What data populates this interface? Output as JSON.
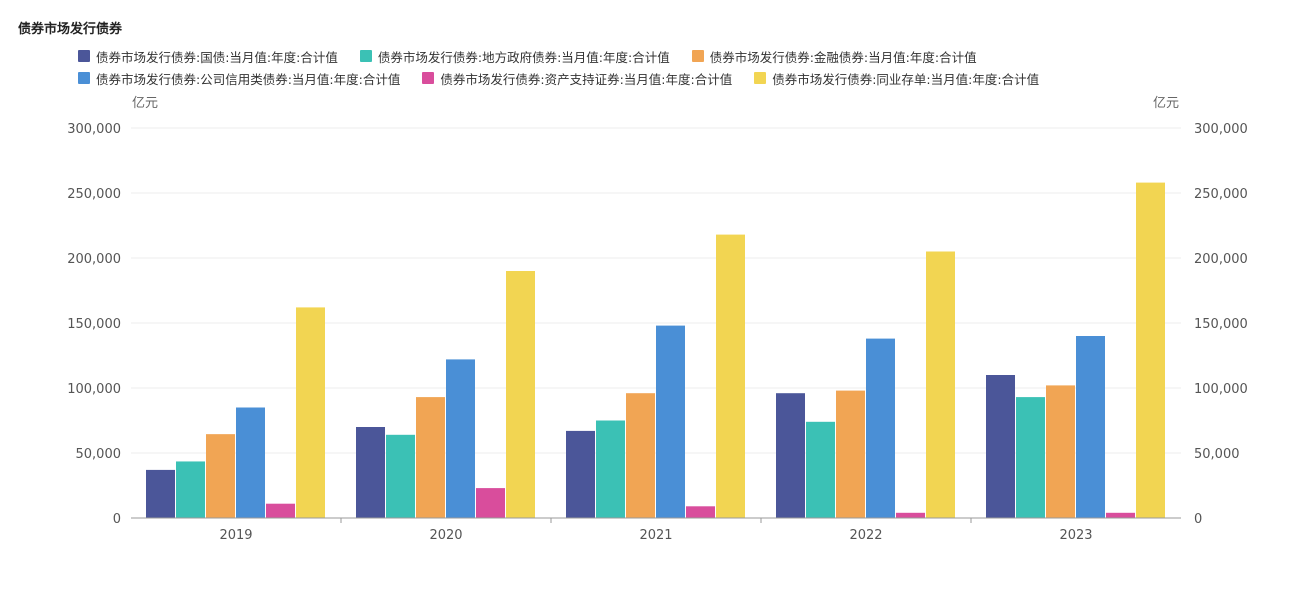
{
  "chart_data": {
    "type": "bar",
    "title": "债券市场发行债券",
    "categories": [
      "2019",
      "2020",
      "2021",
      "2022",
      "2023"
    ],
    "ylim": [
      0,
      300000
    ],
    "yticks": [
      "0",
      "50,000",
      "100,000",
      "150,000",
      "200,000",
      "250,000",
      "300,000"
    ],
    "ytick_values": [
      0,
      50000,
      100000,
      150000,
      200000,
      250000,
      300000
    ],
    "yunit_left": "亿元",
    "yunit_right": "亿元",
    "grid": true,
    "legend_position": "top",
    "series": [
      {
        "name": "债券市场发行债券:国债:当月值:年度:合计值",
        "color": "#4b5699",
        "values": [
          37000,
          70000,
          67000,
          96000,
          110000
        ]
      },
      {
        "name": "债券市场发行债券:地方政府债券:当月值:年度:合计值",
        "color": "#3bc1b5",
        "values": [
          43500,
          64000,
          75000,
          74000,
          93000
        ]
      },
      {
        "name": "债券市场发行债券:金融债券:当月值:年度:合计值",
        "color": "#f1a554",
        "values": [
          64500,
          93000,
          96000,
          98000,
          102000
        ]
      },
      {
        "name": "债券市场发行债券:公司信用类债券:当月值:年度:合计值",
        "color": "#4a8fd6",
        "values": [
          85000,
          122000,
          148000,
          138000,
          140000
        ]
      },
      {
        "name": "债券市场发行债券:资产支持证券:当月值:年度:合计值",
        "color": "#d94d9c",
        "values": [
          11000,
          23000,
          9000,
          4000,
          4000
        ]
      },
      {
        "name": "债券市场发行债券:同业存单:当月值:年度:合计值",
        "color": "#f2d552",
        "values": [
          162000,
          190000,
          218000,
          205000,
          258000
        ]
      }
    ]
  }
}
